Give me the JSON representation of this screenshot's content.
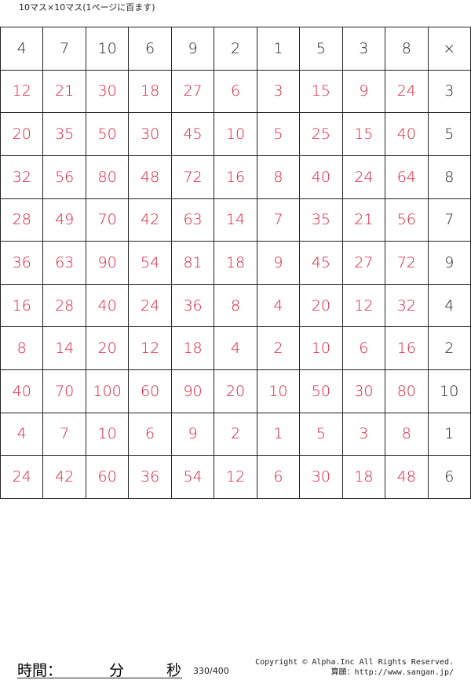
{
  "title": "10マス×10マス(1ページに百ます)",
  "top_header": [
    "4",
    "7",
    "10",
    "6",
    "9",
    "2",
    "1",
    "5",
    "3",
    "8"
  ],
  "corner": "×",
  "rows": [
    {
      "answers": [
        "12",
        "21",
        "30",
        "18",
        "27",
        "6",
        "3",
        "15",
        "9",
        "24"
      ],
      "multiplier": "3"
    },
    {
      "answers": [
        "20",
        "35",
        "50",
        "30",
        "45",
        "10",
        "5",
        "25",
        "15",
        "40"
      ],
      "multiplier": "5"
    },
    {
      "answers": [
        "32",
        "56",
        "80",
        "48",
        "72",
        "16",
        "8",
        "40",
        "24",
        "64"
      ],
      "multiplier": "8"
    },
    {
      "answers": [
        "28",
        "49",
        "70",
        "42",
        "63",
        "14",
        "7",
        "35",
        "21",
        "56"
      ],
      "multiplier": "7"
    },
    {
      "answers": [
        "36",
        "63",
        "90",
        "54",
        "81",
        "18",
        "9",
        "45",
        "27",
        "72"
      ],
      "multiplier": "9"
    },
    {
      "answers": [
        "16",
        "28",
        "40",
        "24",
        "36",
        "8",
        "4",
        "20",
        "12",
        "32"
      ],
      "multiplier": "4"
    },
    {
      "answers": [
        "8",
        "14",
        "20",
        "12",
        "18",
        "4",
        "2",
        "10",
        "6",
        "16"
      ],
      "multiplier": "2"
    },
    {
      "answers": [
        "40",
        "70",
        "100",
        "60",
        "90",
        "20",
        "10",
        "50",
        "30",
        "80"
      ],
      "multiplier": "10"
    },
    {
      "answers": [
        "4",
        "7",
        "10",
        "6",
        "9",
        "2",
        "1",
        "5",
        "3",
        "8"
      ],
      "multiplier": "1"
    },
    {
      "answers": [
        "24",
        "42",
        "60",
        "36",
        "54",
        "12",
        "6",
        "30",
        "18",
        "48"
      ],
      "multiplier": "6"
    }
  ],
  "footer": {
    "time_label": "時間：",
    "minutes_label": "分",
    "seconds_label": "秒",
    "page_count": "330/400",
    "copyright": "Copyright © Alpha.Inc All Rights Reserved.",
    "site": "算願：http://www.sangan.jp/"
  },
  "colors": {
    "answer": "#e0203a",
    "text": "#222222"
  }
}
